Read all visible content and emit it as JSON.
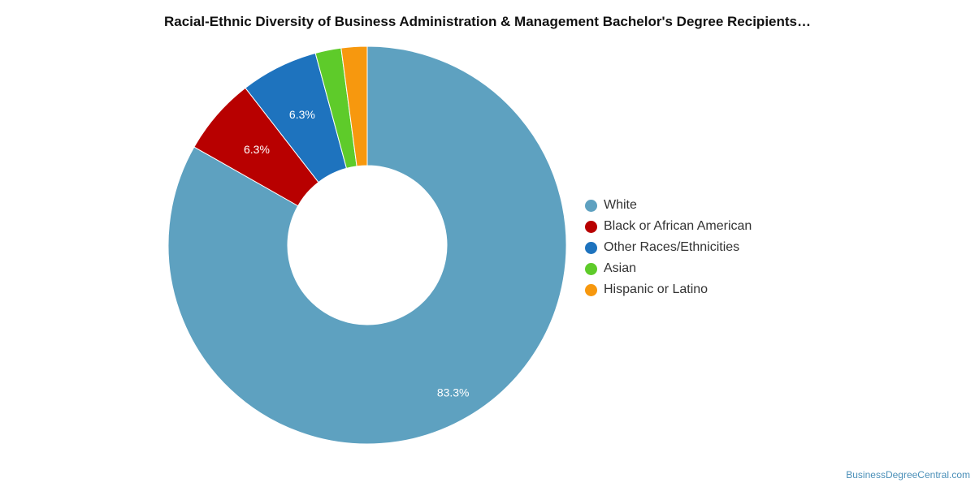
{
  "chart_data": {
    "type": "pie",
    "title": "Racial-Ethnic Diversity of Business Administration & Management Bachelor's Degree Recipients…",
    "donut": true,
    "legend_position": "right",
    "series": [
      {
        "name": "White",
        "value": 83.3,
        "label": "83.3%",
        "color": "#5ea1c0"
      },
      {
        "name": "Black or African American",
        "value": 6.3,
        "label": "6.3%",
        "color": "#b80000"
      },
      {
        "name": "Other Races/Ethnicities",
        "value": 6.3,
        "label": "6.3%",
        "color": "#1e73be"
      },
      {
        "name": "Asian",
        "value": 2.1,
        "label": "",
        "color": "#5ecb2a"
      },
      {
        "name": "Hispanic or Latino",
        "value": 2.1,
        "label": "",
        "color": "#f7980e"
      }
    ]
  },
  "watermark": "BusinessDegreeCentral.com"
}
